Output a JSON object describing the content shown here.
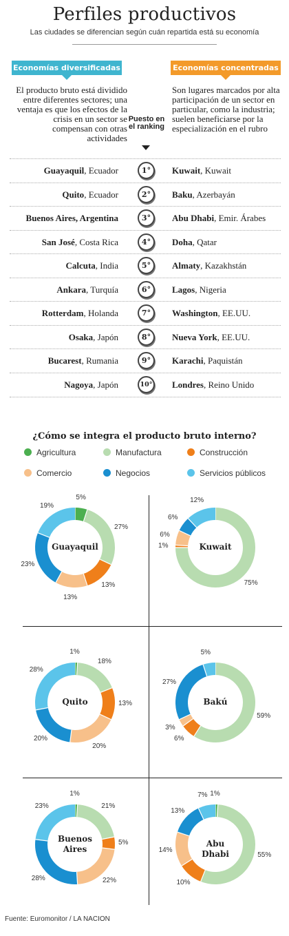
{
  "header": {
    "title": "Perfiles productivos",
    "subtitle": "Las ciudades se diferencian según cuán repartida está su economía"
  },
  "columns": {
    "left_tag": "Economías diversificadas",
    "right_tag": "Economías concentradas",
    "left_desc": "El producto bruto está dividido entre diferentes sectores; una ventaja es que los efectos de la crisis en un sector se compensan con otras actividades",
    "right_desc": "Son lugares marcados por alta participación de un sector en particular, como la industria; suelen beneficiarse por la especialización en el rubro",
    "rank_header": "Puesto en el ranking"
  },
  "ranking": [
    {
      "rank": "1°",
      "left_city": "Guayaquil",
      "left_country": ", Ecuador",
      "right_city": "Kuwait",
      "right_country": ", Kuwait"
    },
    {
      "rank": "2°",
      "left_city": "Quito",
      "left_country": ", Ecuador",
      "right_city": "Baku",
      "right_country": ", Azerbayán"
    },
    {
      "rank": "3°",
      "left_city": "Buenos Aires, Argentina",
      "left_country": "",
      "right_city": "Abu Dhabi",
      "right_country": ", Emir. Árabes"
    },
    {
      "rank": "4°",
      "left_city": "San José",
      "left_country": ", Costa Rica",
      "right_city": "Doha",
      "right_country": ", Qatar"
    },
    {
      "rank": "5°",
      "left_city": "Calcuta",
      "left_country": ", India",
      "right_city": "Almaty",
      "right_country": ", Kazakhstán"
    },
    {
      "rank": "6°",
      "left_city": "Ankara",
      "left_country": ", Turquía",
      "right_city": "Lagos",
      "right_country": ", Nigeria"
    },
    {
      "rank": "7°",
      "left_city": "Rotterdam",
      "left_country": ", Holanda",
      "right_city": "Washington",
      "right_country": ", EE.UU."
    },
    {
      "rank": "8°",
      "left_city": "Osaka",
      "left_country": ", Japón",
      "right_city": "Nueva York",
      "right_country": ", EE.UU."
    },
    {
      "rank": "9°",
      "left_city": "Bucarest",
      "left_country": ", Rumania",
      "right_city": "Karachi",
      "right_country": ", Paquistán"
    },
    {
      "rank": "10°",
      "left_city": "Nagoya",
      "left_country": ", Japón",
      "right_city": "Londres",
      "right_country": ", Reino Unido"
    }
  ],
  "section_title": "¿Cómo se integra el producto bruto interno?",
  "legend": [
    {
      "label": "Agricultura",
      "color": "#4caf50"
    },
    {
      "label": "Manufactura",
      "color": "#b8dcb0"
    },
    {
      "label": "Construcción",
      "color": "#ef7f1a"
    },
    {
      "label": "Comercio",
      "color": "#f7c08a"
    },
    {
      "label": "Negocios",
      "color": "#1a8fd0"
    },
    {
      "label": "Servicios públicos",
      "color": "#5bc4ea"
    }
  ],
  "source": "Fuente: Euromonitor / LA NACION",
  "chart_data": [
    {
      "type": "pie",
      "title": "Guayaquil",
      "categories": [
        "Agricultura",
        "Manufactura",
        "Construcción",
        "Comercio",
        "Negocios",
        "Servicios públicos"
      ],
      "values": [
        5,
        27,
        13,
        13,
        23,
        19
      ],
      "labels": [
        "5%",
        "27%",
        "13%",
        "13%",
        "23%",
        "19%"
      ]
    },
    {
      "type": "pie",
      "title": "Kuwait",
      "categories": [
        "Agricultura",
        "Manufactura",
        "Construcción",
        "Comercio",
        "Negocios",
        "Servicios públicos"
      ],
      "values": [
        0,
        75,
        1,
        6,
        6,
        12
      ],
      "labels": [
        "",
        "75%",
        "1%",
        "6%",
        "6%",
        "12%"
      ]
    },
    {
      "type": "pie",
      "title": "Quito",
      "categories": [
        "Agricultura",
        "Manufactura",
        "Construcción",
        "Comercio",
        "Negocios",
        "Servicios públicos"
      ],
      "values": [
        1,
        18,
        13,
        20,
        20,
        28
      ],
      "labels": [
        "1%",
        "18%",
        "13%",
        "20%",
        "20%",
        "28%"
      ]
    },
    {
      "type": "pie",
      "title": "Bakú",
      "categories": [
        "Agricultura",
        "Manufactura",
        "Construcción",
        "Comercio",
        "Negocios",
        "Servicios públicos"
      ],
      "values": [
        0,
        59,
        6,
        3,
        27,
        5
      ],
      "labels": [
        "",
        "59%",
        "6%",
        "3%",
        "27%",
        "5%"
      ]
    },
    {
      "type": "pie",
      "title": "Buenos Aires",
      "categories": [
        "Agricultura",
        "Manufactura",
        "Construcción",
        "Comercio",
        "Negocios",
        "Servicios públicos"
      ],
      "values": [
        1,
        21,
        5,
        22,
        28,
        23
      ],
      "labels": [
        "1%",
        "21%",
        "5%",
        "22%",
        "28%",
        "23%"
      ]
    },
    {
      "type": "pie",
      "title": "Abu Dhabi",
      "categories": [
        "Agricultura",
        "Manufactura",
        "Construcción",
        "Comercio",
        "Negocios",
        "Servicios públicos"
      ],
      "values": [
        1,
        55,
        10,
        14,
        13,
        7
      ],
      "labels": [
        "1%",
        "55%",
        "10%",
        "14%",
        "13%",
        "7%"
      ]
    }
  ]
}
